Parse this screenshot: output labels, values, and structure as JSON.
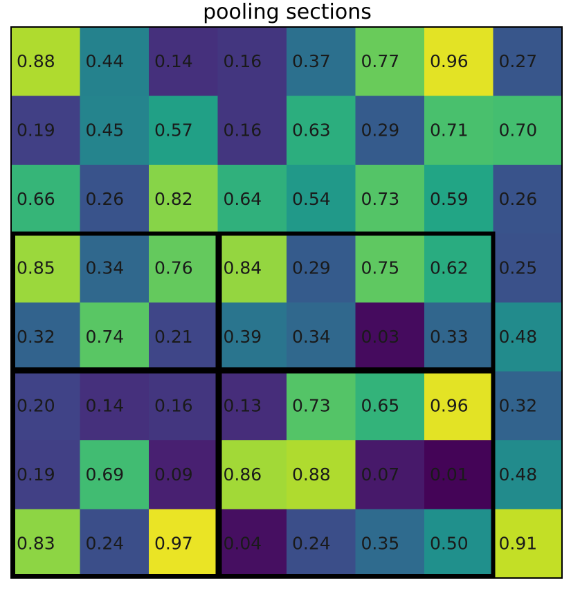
{
  "chart_data": {
    "type": "heatmap",
    "title": "pooling sections",
    "colormap": "viridis",
    "value_range": [
      0,
      1
    ],
    "rows": 8,
    "cols": 8,
    "values": [
      [
        0.88,
        0.44,
        0.14,
        0.16,
        0.37,
        0.77,
        0.96,
        0.27
      ],
      [
        0.19,
        0.45,
        0.57,
        0.16,
        0.63,
        0.29,
        0.71,
        0.7
      ],
      [
        0.66,
        0.26,
        0.82,
        0.64,
        0.54,
        0.73,
        0.59,
        0.26
      ],
      [
        0.85,
        0.34,
        0.76,
        0.84,
        0.29,
        0.75,
        0.62,
        0.25
      ],
      [
        0.32,
        0.74,
        0.21,
        0.39,
        0.34,
        0.03,
        0.33,
        0.48
      ],
      [
        0.2,
        0.14,
        0.16,
        0.13,
        0.73,
        0.65,
        0.96,
        0.32
      ],
      [
        0.19,
        0.69,
        0.09,
        0.86,
        0.88,
        0.07,
        0.01,
        0.48
      ],
      [
        0.83,
        0.24,
        0.97,
        0.04,
        0.24,
        0.35,
        0.5,
        0.91
      ]
    ],
    "pooling_sections": [
      {
        "row_start": 3,
        "row_end": 4,
        "col_start": 0,
        "col_end": 2
      },
      {
        "row_start": 3,
        "row_end": 4,
        "col_start": 3,
        "col_end": 6
      },
      {
        "row_start": 5,
        "row_end": 7,
        "col_start": 0,
        "col_end": 2
      },
      {
        "row_start": 5,
        "row_end": 7,
        "col_start": 3,
        "col_end": 6
      }
    ],
    "value_format": "2-decimal",
    "grid": false
  }
}
